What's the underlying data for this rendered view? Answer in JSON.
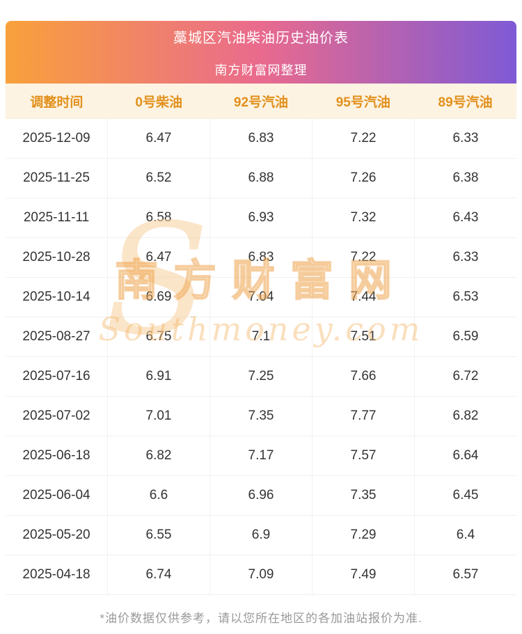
{
  "header": {
    "title_line1": "藁城区汽油柴油历史油价表",
    "title_line2": "南方财富网整理"
  },
  "table": {
    "columns": [
      "调整时间",
      "0号柴油",
      "92号汽油",
      "95号汽油",
      "89号汽油"
    ],
    "rows": [
      [
        "2025-12-09",
        "6.47",
        "6.83",
        "7.22",
        "6.33"
      ],
      [
        "2025-11-25",
        "6.52",
        "6.88",
        "7.26",
        "6.38"
      ],
      [
        "2025-11-11",
        "6.58",
        "6.93",
        "7.32",
        "6.43"
      ],
      [
        "2025-10-28",
        "6.47",
        "6.83",
        "7.22",
        "6.33"
      ],
      [
        "2025-10-14",
        "6.69",
        "7.04",
        "7.44",
        "6.53"
      ],
      [
        "2025-08-27",
        "6.75",
        "7.1",
        "7.51",
        "6.59"
      ],
      [
        "2025-07-16",
        "6.91",
        "7.25",
        "7.66",
        "6.72"
      ],
      [
        "2025-07-02",
        "7.01",
        "7.35",
        "7.77",
        "6.82"
      ],
      [
        "2025-06-18",
        "6.82",
        "7.17",
        "7.57",
        "6.64"
      ],
      [
        "2025-06-04",
        "6.6",
        "6.96",
        "7.35",
        "6.45"
      ],
      [
        "2025-05-20",
        "6.55",
        "6.9",
        "7.29",
        "6.4"
      ],
      [
        "2025-04-18",
        "6.74",
        "7.09",
        "7.49",
        "6.57"
      ]
    ]
  },
  "watermark": {
    "cn": "南方财富网",
    "en": "Southmoney.com"
  },
  "footer": {
    "note": "*油价数据仅供参考，请以您所在地区的各加油站报价为准."
  },
  "colors": {
    "banner_gradient_start": "#f9a13b",
    "banner_gradient_mid": "#e96a8e",
    "banner_gradient_end": "#7f5ad5",
    "banner_text": "#ffffff",
    "column_header_bg": "#fdf3e2",
    "column_header_text": "#e2901c",
    "cell_text": "#333333",
    "row_border": "#f0f0f0",
    "watermark_tint": "#f3b262",
    "footer_text": "#999999"
  }
}
